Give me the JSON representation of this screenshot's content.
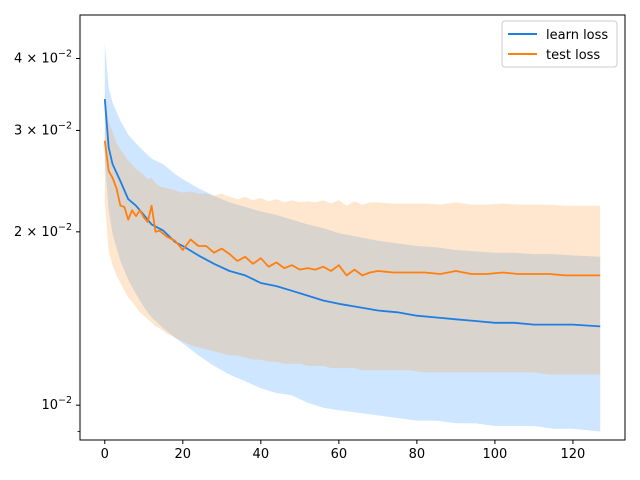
{
  "chart_data": {
    "type": "line",
    "title": "",
    "xlabel": "",
    "ylabel": "",
    "yscale": "log",
    "xlim": [
      -6.35,
      133.35
    ],
    "ylim": [
      0.0087,
      0.0476
    ],
    "grid": false,
    "legend_position": "top-right",
    "x_ticks": [
      0,
      20,
      40,
      60,
      80,
      100,
      120
    ],
    "x_tick_labels": [
      "0",
      "20",
      "40",
      "60",
      "80",
      "100",
      "120"
    ],
    "y_ticks": [
      0.01,
      0.02,
      0.03,
      0.04
    ],
    "y_tick_labels": [
      {
        "base": "10",
        "exp": "−2",
        "prefix": ""
      },
      {
        "base": "10",
        "exp": "−2",
        "prefix": "2 × "
      },
      {
        "base": "10",
        "exp": "−2",
        "prefix": "3 × "
      },
      {
        "base": "10",
        "exp": "−2",
        "prefix": "4 × "
      }
    ],
    "y_minor_ticks": [
      0.009
    ],
    "series": [
      {
        "name": "learn loss",
        "color": "#1f7fe0",
        "band_color": "#1f8fff",
        "band_opacity": 0.22,
        "x": [
          0,
          1,
          2,
          4,
          6,
          8,
          10,
          12,
          15,
          18,
          20,
          24,
          28,
          32,
          36,
          40,
          44,
          48,
          52,
          56,
          60,
          65,
          70,
          75,
          80,
          85,
          90,
          95,
          100,
          105,
          110,
          115,
          120,
          127
        ],
        "values": [
          0.034,
          0.028,
          0.0262,
          0.0245,
          0.0228,
          0.0222,
          0.0214,
          0.0206,
          0.0201,
          0.0192,
          0.0189,
          0.0182,
          0.0176,
          0.0171,
          0.0168,
          0.0163,
          0.0161,
          0.0158,
          0.0155,
          0.0152,
          0.015,
          0.0148,
          0.0146,
          0.0145,
          0.0143,
          0.0142,
          0.0141,
          0.014,
          0.0139,
          0.0139,
          0.0138,
          0.0138,
          0.0138,
          0.0137
        ],
        "lower": [
          0.0265,
          0.0218,
          0.0198,
          0.0178,
          0.0165,
          0.0156,
          0.0148,
          0.0142,
          0.0136,
          0.0131,
          0.0128,
          0.0122,
          0.0117,
          0.0113,
          0.011,
          0.0107,
          0.0105,
          0.0104,
          0.0101,
          0.0099,
          0.0098,
          0.0097,
          0.0096,
          0.0095,
          0.0094,
          0.0094,
          0.0093,
          0.0093,
          0.0092,
          0.0092,
          0.0092,
          0.0091,
          0.0091,
          0.009
        ],
        "upper": [
          0.0425,
          0.0355,
          0.0335,
          0.0312,
          0.0295,
          0.0285,
          0.0276,
          0.0268,
          0.0262,
          0.0252,
          0.0247,
          0.0238,
          0.0231,
          0.0225,
          0.0221,
          0.0217,
          0.0214,
          0.021,
          0.0206,
          0.0203,
          0.0199,
          0.0196,
          0.0193,
          0.0191,
          0.0189,
          0.0188,
          0.0186,
          0.0185,
          0.0184,
          0.0184,
          0.0183,
          0.0183,
          0.0182,
          0.0181
        ]
      },
      {
        "name": "test loss",
        "color": "#ff7f0e",
        "band_color": "#ff9f40",
        "band_opacity": 0.25,
        "x": [
          0,
          1,
          2,
          3,
          4,
          5,
          6,
          7,
          8,
          9,
          10,
          11,
          12,
          13,
          14,
          16,
          18,
          20,
          22,
          24,
          26,
          28,
          30,
          32,
          34,
          36,
          38,
          40,
          42,
          44,
          46,
          48,
          50,
          52,
          54,
          56,
          58,
          60,
          62,
          64,
          66,
          68,
          70,
          74,
          78,
          82,
          86,
          90,
          94,
          98,
          102,
          106,
          110,
          114,
          118,
          122,
          127
        ],
        "values": [
          0.0288,
          0.0255,
          0.0248,
          0.0238,
          0.0222,
          0.0221,
          0.021,
          0.0218,
          0.0213,
          0.0218,
          0.0212,
          0.0208,
          0.0222,
          0.02,
          0.0201,
          0.0196,
          0.0193,
          0.0186,
          0.0194,
          0.0189,
          0.0189,
          0.0184,
          0.0187,
          0.0183,
          0.0178,
          0.0181,
          0.0176,
          0.018,
          0.0174,
          0.0177,
          0.0173,
          0.0175,
          0.0172,
          0.0173,
          0.0172,
          0.0174,
          0.0171,
          0.0175,
          0.0168,
          0.0172,
          0.0168,
          0.017,
          0.0171,
          0.017,
          0.017,
          0.017,
          0.0169,
          0.0171,
          0.0169,
          0.0169,
          0.017,
          0.0169,
          0.0169,
          0.0169,
          0.0168,
          0.0168,
          0.0168
        ],
        "lower": [
          0.0225,
          0.0185,
          0.0175,
          0.0168,
          0.0163,
          0.0158,
          0.0154,
          0.0151,
          0.0148,
          0.0145,
          0.0143,
          0.0141,
          0.0139,
          0.0137,
          0.0136,
          0.0133,
          0.0131,
          0.0129,
          0.0127,
          0.0126,
          0.0125,
          0.0124,
          0.0123,
          0.0122,
          0.0122,
          0.0121,
          0.012,
          0.012,
          0.0119,
          0.0119,
          0.0118,
          0.0118,
          0.0118,
          0.0117,
          0.0117,
          0.0117,
          0.0116,
          0.0116,
          0.0116,
          0.0116,
          0.0115,
          0.0115,
          0.0115,
          0.0115,
          0.0115,
          0.0114,
          0.0114,
          0.0114,
          0.0114,
          0.0114,
          0.0114,
          0.0114,
          0.0114,
          0.0113,
          0.0113,
          0.0113,
          0.0113
        ],
        "upper": [
          0.035,
          0.031,
          0.0298,
          0.0285,
          0.0278,
          0.0272,
          0.0266,
          0.0262,
          0.0257,
          0.0254,
          0.0251,
          0.0247,
          0.0248,
          0.0243,
          0.024,
          0.0238,
          0.0236,
          0.0234,
          0.0235,
          0.0233,
          0.0233,
          0.0231,
          0.0233,
          0.023,
          0.0228,
          0.023,
          0.0227,
          0.0229,
          0.0226,
          0.0228,
          0.0225,
          0.0227,
          0.0225,
          0.0226,
          0.0225,
          0.0227,
          0.0224,
          0.0227,
          0.0222,
          0.0226,
          0.0223,
          0.0225,
          0.0225,
          0.0224,
          0.0224,
          0.0224,
          0.0223,
          0.0225,
          0.0223,
          0.0223,
          0.0224,
          0.0223,
          0.0223,
          0.0223,
          0.0222,
          0.0222,
          0.0222
        ]
      }
    ]
  }
}
